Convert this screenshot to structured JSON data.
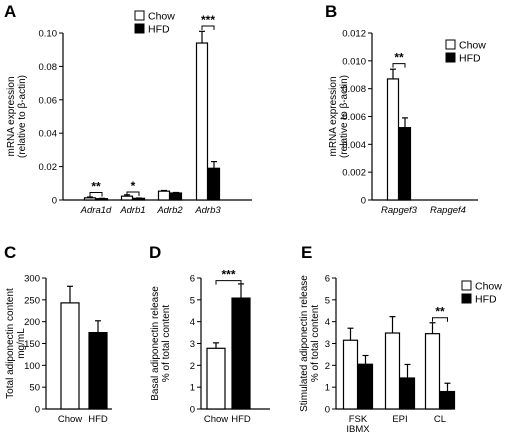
{
  "chart_data": [
    {
      "panel": "A",
      "type": "bar",
      "ylabel": [
        "mRNA expression",
        "(relative to β-actin)"
      ],
      "ylim": [
        0,
        0.1
      ],
      "yticks": [
        0,
        0.02,
        0.04,
        0.06,
        0.08,
        0.1
      ],
      "ytick_labels": [
        "0",
        "0.02",
        "0.04",
        "0.06",
        "0.08",
        "0.10"
      ],
      "categories": [
        "Adra1d",
        "Adrb1",
        "Adrb2",
        "Adrb3"
      ],
      "category_italic": true,
      "legend": true,
      "series": [
        {
          "name": "Chow",
          "color": "#ffffff",
          "values": [
            0.0013,
            0.0023,
            0.0053,
            0.094
          ],
          "errors": [
            0.0005,
            0.0008,
            0.0004,
            0.007
          ]
        },
        {
          "name": "HFD",
          "color": "#000000",
          "values": [
            0.0008,
            0.001,
            0.0042,
            0.019
          ],
          "errors": [
            0.0002,
            0.0002,
            0.0003,
            0.004
          ]
        }
      ],
      "significance": [
        {
          "category": 0,
          "label": "**",
          "y": 0.0045
        },
        {
          "category": 1,
          "label": "*",
          "y": 0.0048
        },
        {
          "category": 3,
          "label": "***",
          "y": 0.1042
        }
      ]
    },
    {
      "panel": "B",
      "type": "bar",
      "ylabel": [
        "mRNA expression",
        "(relative to β-actin)"
      ],
      "ylim": [
        0,
        0.012
      ],
      "yticks": [
        0,
        0.002,
        0.004,
        0.006,
        0.008,
        0.01,
        0.012
      ],
      "ytick_labels": [
        "0",
        "0.002",
        "0.004",
        "0.006",
        "0.008",
        "0.010",
        "0.012"
      ],
      "categories": [
        "Rapgef3",
        "Rapgef4"
      ],
      "category_italic": true,
      "legend": true,
      "series": [
        {
          "name": "Chow",
          "color": "#ffffff",
          "values": [
            0.0087,
            null
          ],
          "errors": [
            0.0007,
            null
          ]
        },
        {
          "name": "HFD",
          "color": "#000000",
          "values": [
            0.0052,
            null
          ],
          "errors": [
            0.0007,
            null
          ]
        }
      ],
      "significance": [
        {
          "category": 0,
          "label": "**",
          "y": 0.0098
        }
      ]
    },
    {
      "panel": "C",
      "type": "bar",
      "ylabel": [
        "Total adiponectin content",
        "mg/mL"
      ],
      "ylim": [
        0,
        300
      ],
      "yticks": [
        0,
        50,
        100,
        150,
        200,
        250,
        300
      ],
      "ytick_labels": [
        "0",
        "50",
        "100",
        "150",
        "200",
        "250",
        "300"
      ],
      "categories": [
        "Chow",
        "HFD"
      ],
      "category_italic": false,
      "legend": false,
      "single": [
        {
          "value": 243,
          "error": 38,
          "color": "#ffffff"
        },
        {
          "value": 175,
          "error": 27,
          "color": "#000000"
        }
      ]
    },
    {
      "panel": "D",
      "type": "bar",
      "ylabel": [
        "Basal adiponectin release",
        "% of total content"
      ],
      "ylim": [
        0,
        6
      ],
      "yticks": [
        0,
        1,
        2,
        3,
        4,
        5,
        6
      ],
      "ytick_labels": [
        "0",
        "1",
        "2",
        "3",
        "4",
        "5",
        "6"
      ],
      "categories": [
        "Chow",
        "HFD"
      ],
      "category_italic": false,
      "legend": false,
      "single": [
        {
          "value": 2.78,
          "error": 0.25,
          "color": "#ffffff"
        },
        {
          "value": 5.08,
          "error": 0.65,
          "color": "#000000"
        }
      ],
      "significance": [
        {
          "from": 0,
          "to": 1,
          "label": "***",
          "y": 5.88
        }
      ]
    },
    {
      "panel": "E",
      "type": "bar",
      "ylabel": [
        "Stimulated adiponectin release",
        "% of total content"
      ],
      "ylim": [
        0,
        6
      ],
      "yticks": [
        0,
        1,
        2,
        3,
        4,
        5,
        6
      ],
      "ytick_labels": [
        "0",
        "1",
        "2",
        "3",
        "4",
        "5",
        "6"
      ],
      "categories": [
        [
          "FSK",
          "IBMX"
        ],
        [
          "EPI"
        ],
        [
          "CL"
        ]
      ],
      "category_italic": false,
      "legend": true,
      "series": [
        {
          "name": "Chow",
          "color": "#ffffff",
          "values": [
            3.15,
            3.48,
            3.45
          ],
          "errors": [
            0.55,
            0.75,
            0.5
          ]
        },
        {
          "name": "HFD",
          "color": "#000000",
          "values": [
            2.05,
            1.42,
            0.8
          ],
          "errors": [
            0.4,
            0.62,
            0.38
          ]
        }
      ],
      "significance": [
        {
          "category": 2,
          "label": "**",
          "y": 4.18
        }
      ]
    }
  ]
}
